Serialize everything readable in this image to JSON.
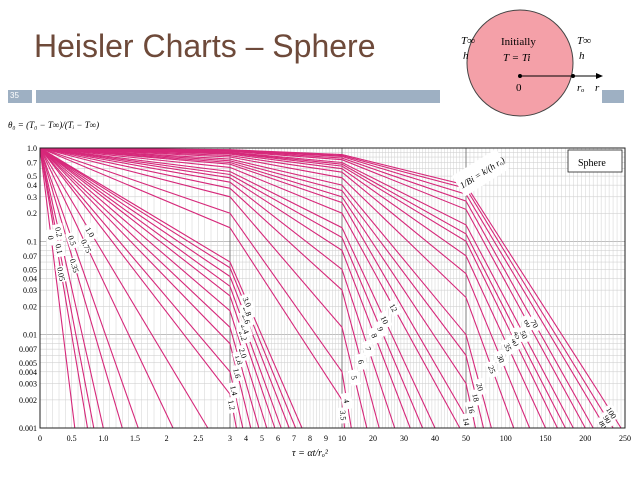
{
  "slide": {
    "title": "Heisler Charts – Sphere",
    "number": "35"
  },
  "inset": {
    "t_inf_left": "T∞",
    "h_left": "h",
    "initially": "Initially",
    "t_eq": "T = Ti",
    "t_inf_right": "T∞",
    "h_right": "h",
    "origin": "0",
    "r_o": "rₒ",
    "r": "r",
    "fill": "#f4a0a8"
  },
  "chart_data": {
    "type": "line",
    "title": "Sphere",
    "ylabel": "θ₀ = (T₀ − T∞)/(Tᵢ − T∞)",
    "xlabel": "τ = αt/rₒ²",
    "param_label": "1/Bi = k/(h rₒ)",
    "line_color": "#d6287a",
    "yscale": "log",
    "ylim": [
      0.001,
      1.0
    ],
    "y_ticks": [
      "1.0",
      "0.7",
      "0.5",
      "0.4",
      "0.3",
      "0.2",
      "0.1",
      "0.07",
      "0.05",
      "0.04",
      "0.03",
      "0.02",
      "0.01",
      "0.007",
      "0.005",
      "0.004",
      "0.003",
      "0.002",
      "0.001"
    ],
    "x_ticks": [
      "0",
      "0.5",
      "1.0",
      "1.5",
      "2",
      "2.5",
      "3",
      "4",
      "5",
      "6",
      "7",
      "8",
      "9",
      "10",
      "20",
      "30",
      "40",
      "50",
      "100",
      "150",
      "200",
      "250"
    ],
    "x_segments": [
      [
        0,
        3
      ],
      [
        3,
        10
      ],
      [
        10,
        50
      ],
      [
        50,
        250
      ]
    ],
    "series": [
      {
        "name": "0",
        "points": [
          [
            0,
            1
          ],
          [
            0.55,
            0.001
          ]
        ]
      },
      {
        "name": "0.05",
        "points": [
          [
            0,
            1
          ],
          [
            0.75,
            0.001
          ]
        ]
      },
      {
        "name": "0.1",
        "points": [
          [
            0,
            1
          ],
          [
            0.85,
            0.001
          ]
        ]
      },
      {
        "name": "0.2",
        "points": [
          [
            0,
            1
          ],
          [
            1.0,
            0.001
          ]
        ]
      },
      {
        "name": "0.35",
        "points": [
          [
            0,
            1
          ],
          [
            1.3,
            0.001
          ]
        ]
      },
      {
        "name": "0.5",
        "points": [
          [
            0,
            1
          ],
          [
            1.55,
            0.001
          ]
        ]
      },
      {
        "name": "0.75",
        "points": [
          [
            0,
            1
          ],
          [
            2.1,
            0.001
          ]
        ]
      },
      {
        "name": "1.0",
        "points": [
          [
            0,
            1
          ],
          [
            2.65,
            0.001
          ]
        ]
      },
      {
        "name": "1.2",
        "points": [
          [
            0,
            1
          ],
          [
            3,
            0.0023
          ],
          [
            3.4,
            0.001
          ]
        ]
      },
      {
        "name": "1.4",
        "points": [
          [
            0,
            1
          ],
          [
            3,
            0.004
          ],
          [
            3.8,
            0.001
          ]
        ]
      },
      {
        "name": "1.6",
        "points": [
          [
            0,
            1
          ],
          [
            3,
            0.008
          ],
          [
            4.3,
            0.001
          ]
        ]
      },
      {
        "name": "1.8",
        "points": [
          [
            0,
            1
          ],
          [
            3,
            0.012
          ],
          [
            4.8,
            0.001
          ]
        ]
      },
      {
        "name": "2.0",
        "points": [
          [
            0,
            1
          ],
          [
            3,
            0.018
          ],
          [
            5.3,
            0.001
          ]
        ]
      },
      {
        "name": "2.2",
        "points": [
          [
            0,
            1
          ],
          [
            3,
            0.026
          ],
          [
            5.8,
            0.001
          ]
        ]
      },
      {
        "name": "2.4",
        "points": [
          [
            0,
            1
          ],
          [
            3,
            0.033
          ],
          [
            6.2,
            0.001
          ]
        ]
      },
      {
        "name": "2.6",
        "points": [
          [
            0,
            1
          ],
          [
            3,
            0.042
          ],
          [
            6.7,
            0.001
          ]
        ]
      },
      {
        "name": "2.8",
        "points": [
          [
            0,
            1
          ],
          [
            3,
            0.052
          ],
          [
            7.1,
            0.001
          ]
        ]
      },
      {
        "name": "3.0",
        "points": [
          [
            0,
            1
          ],
          [
            3,
            0.06
          ],
          [
            7.5,
            0.001
          ]
        ]
      },
      {
        "name": "3.5",
        "points": [
          [
            0,
            1
          ],
          [
            3,
            0.14
          ],
          [
            10,
            0.002
          ],
          [
            10.8,
            0.001
          ]
        ]
      },
      {
        "name": "4",
        "points": [
          [
            0,
            1
          ],
          [
            3,
            0.2
          ],
          [
            10,
            0.004
          ],
          [
            13,
            0.001
          ]
        ]
      },
      {
        "name": "5",
        "points": [
          [
            0,
            1
          ],
          [
            3,
            0.3
          ],
          [
            10,
            0.012
          ],
          [
            18,
            0.001
          ]
        ]
      },
      {
        "name": "6",
        "points": [
          [
            0,
            1
          ],
          [
            3,
            0.37
          ],
          [
            10,
            0.03
          ],
          [
            22,
            0.001
          ]
        ]
      },
      {
        "name": "7",
        "points": [
          [
            0,
            1
          ],
          [
            3,
            0.43
          ],
          [
            10,
            0.05
          ],
          [
            27,
            0.001
          ]
        ]
      },
      {
        "name": "8",
        "points": [
          [
            0,
            1
          ],
          [
            3,
            0.48
          ],
          [
            10,
            0.08
          ],
          [
            32,
            0.001
          ]
        ]
      },
      {
        "name": "9",
        "points": [
          [
            0,
            1
          ],
          [
            3,
            0.52
          ],
          [
            10,
            0.11
          ],
          [
            36,
            0.001
          ]
        ]
      },
      {
        "name": "10",
        "points": [
          [
            0,
            1
          ],
          [
            3,
            0.56
          ],
          [
            10,
            0.14
          ],
          [
            40,
            0.001
          ]
        ]
      },
      {
        "name": "12",
        "points": [
          [
            0,
            1
          ],
          [
            3,
            0.62
          ],
          [
            10,
            0.2
          ],
          [
            48,
            0.001
          ]
        ]
      },
      {
        "name": "14",
        "points": [
          [
            0,
            1
          ],
          [
            3,
            0.67
          ],
          [
            10,
            0.26
          ],
          [
            50,
            0.0013
          ],
          [
            52,
            0.001
          ]
        ]
      },
      {
        "name": "16",
        "points": [
          [
            0,
            1
          ],
          [
            3,
            0.7
          ],
          [
            10,
            0.3
          ],
          [
            50,
            0.003
          ],
          [
            62,
            0.001
          ]
        ]
      },
      {
        "name": "18",
        "points": [
          [
            0,
            1
          ],
          [
            3,
            0.73
          ],
          [
            10,
            0.35
          ],
          [
            50,
            0.006
          ],
          [
            72,
            0.001
          ]
        ]
      },
      {
        "name": "20",
        "points": [
          [
            0,
            1
          ],
          [
            3,
            0.76
          ],
          [
            10,
            0.4
          ],
          [
            50,
            0.01
          ],
          [
            82,
            0.001
          ]
        ]
      },
      {
        "name": "25",
        "points": [
          [
            0,
            1
          ],
          [
            3,
            0.8
          ],
          [
            10,
            0.48
          ],
          [
            50,
            0.025
          ],
          [
            110,
            0.001
          ]
        ]
      },
      {
        "name": "30",
        "points": [
          [
            0,
            1
          ],
          [
            3,
            0.83
          ],
          [
            10,
            0.55
          ],
          [
            50,
            0.045
          ],
          [
            130,
            0.001
          ]
        ]
      },
      {
        "name": "35",
        "points": [
          [
            0,
            1
          ],
          [
            3,
            0.86
          ],
          [
            10,
            0.6
          ],
          [
            50,
            0.07
          ],
          [
            150,
            0.001
          ]
        ]
      },
      {
        "name": "40",
        "points": [
          [
            0,
            1
          ],
          [
            3,
            0.88
          ],
          [
            10,
            0.64
          ],
          [
            50,
            0.1
          ],
          [
            165,
            0.001
          ]
        ]
      },
      {
        "name": "45",
        "points": [
          [
            0,
            1
          ],
          [
            3,
            0.89
          ],
          [
            10,
            0.67
          ],
          [
            50,
            0.12
          ],
          [
            175,
            0.001
          ]
        ]
      },
      {
        "name": "50",
        "points": [
          [
            0,
            1
          ],
          [
            3,
            0.9
          ],
          [
            10,
            0.7
          ],
          [
            50,
            0.15
          ],
          [
            185,
            0.001
          ]
        ]
      },
      {
        "name": "60",
        "points": [
          [
            0,
            1
          ],
          [
            3,
            0.92
          ],
          [
            10,
            0.75
          ],
          [
            50,
            0.22
          ],
          [
            200,
            0.001
          ]
        ]
      },
      {
        "name": "70",
        "points": [
          [
            0,
            1
          ],
          [
            3,
            0.93
          ],
          [
            10,
            0.78
          ],
          [
            50,
            0.27
          ],
          [
            210,
            0.001
          ]
        ]
      },
      {
        "name": "80",
        "points": [
          [
            0,
            1
          ],
          [
            3,
            0.94
          ],
          [
            10,
            0.81
          ],
          [
            50,
            0.32
          ],
          [
            220,
            0.0012
          ],
          [
            225,
            0.001
          ]
        ]
      },
      {
        "name": "90",
        "points": [
          [
            0,
            1
          ],
          [
            3,
            0.95
          ],
          [
            10,
            0.83
          ],
          [
            50,
            0.37
          ],
          [
            220,
            0.0016
          ],
          [
            235,
            0.001
          ]
        ]
      },
      {
        "name": "100",
        "points": [
          [
            0,
            1
          ],
          [
            3,
            0.96
          ],
          [
            10,
            0.85
          ],
          [
            50,
            0.4
          ],
          [
            220,
            0.0022
          ],
          [
            245,
            0.001
          ]
        ]
      }
    ],
    "labels_placed": [
      {
        "text": "0",
        "s": "0",
        "frac": 0.32
      },
      {
        "text": "0.05",
        "s": "0.05",
        "frac": 0.45
      },
      {
        "text": "0.1",
        "s": "0.1",
        "frac": 0.36
      },
      {
        "text": "0.2",
        "s": "0.2",
        "frac": 0.3
      },
      {
        "text": "0.35",
        "s": "0.35",
        "frac": 0.42
      },
      {
        "text": "0.5",
        "s": "0.5",
        "frac": 0.33
      },
      {
        "text": "0.75",
        "s": "0.75",
        "frac": 0.35
      },
      {
        "text": "1.0",
        "s": "1.0",
        "frac": 0.3
      },
      {
        "text": "1.2",
        "s": "1.2",
        "frac": 0.32
      },
      {
        "text": "1.4",
        "s": "1.4",
        "frac": 0.33
      },
      {
        "text": "1.6",
        "s": "1.6",
        "frac": 0.35
      },
      {
        "text": "1.8",
        "s": "1.8",
        "frac": 0.32
      },
      {
        "text": "2.0",
        "s": "2.0",
        "frac": 0.36
      },
      {
        "text": "2.2",
        "s": "2.2",
        "frac": 0.3
      },
      {
        "text": "2.4",
        "s": "2.4",
        "frac": 0.3
      },
      {
        "text": "2.6",
        "s": "2.6",
        "frac": 0.28
      },
      {
        "text": "2.8",
        "s": "2.8",
        "frac": 0.27
      },
      {
        "text": "3.0",
        "s": "3.0",
        "frac": 0.24
      },
      {
        "text": "3.5",
        "s": "3.5",
        "frac": 0.55
      },
      {
        "text": "4",
        "s": "4",
        "frac": 0.52
      },
      {
        "text": "5",
        "s": "5",
        "frac": 0.5
      },
      {
        "text": "6",
        "s": "6",
        "frac": 0.52
      },
      {
        "text": "7",
        "s": "7",
        "frac": 0.5
      },
      {
        "text": "8",
        "s": "8",
        "frac": 0.48
      },
      {
        "text": "9",
        "s": "9",
        "frac": 0.48
      },
      {
        "text": "10",
        "s": "10",
        "frac": 0.46
      },
      {
        "text": "12",
        "s": "12",
        "frac": 0.44
      },
      {
        "text": "14",
        "s": "14",
        "frac": 0.4
      },
      {
        "text": "16",
        "s": "16",
        "frac": 0.58
      },
      {
        "text": "18",
        "s": "18",
        "frac": 0.58
      },
      {
        "text": "20",
        "s": "20",
        "frac": 0.56
      },
      {
        "text": "25",
        "s": "25",
        "frac": 0.55
      },
      {
        "text": "30",
        "s": "30",
        "frac": 0.55
      },
      {
        "text": "35",
        "s": "35",
        "frac": 0.53
      },
      {
        "text": "40",
        "s": "40",
        "frac": 0.54
      },
      {
        "text": "45",
        "s": "45",
        "frac": 0.52
      },
      {
        "text": "50",
        "s": "50",
        "frac": 0.54
      },
      {
        "text": "60",
        "s": "60",
        "frac": 0.52
      },
      {
        "text": "70",
        "s": "70",
        "frac": 0.54
      },
      {
        "text": "80",
        "s": "80",
        "frac": 0.52
      },
      {
        "text": "90",
        "s": "90",
        "frac": 0.54
      },
      {
        "text": "100",
        "s": "100",
        "frac": 0.52
      }
    ]
  }
}
